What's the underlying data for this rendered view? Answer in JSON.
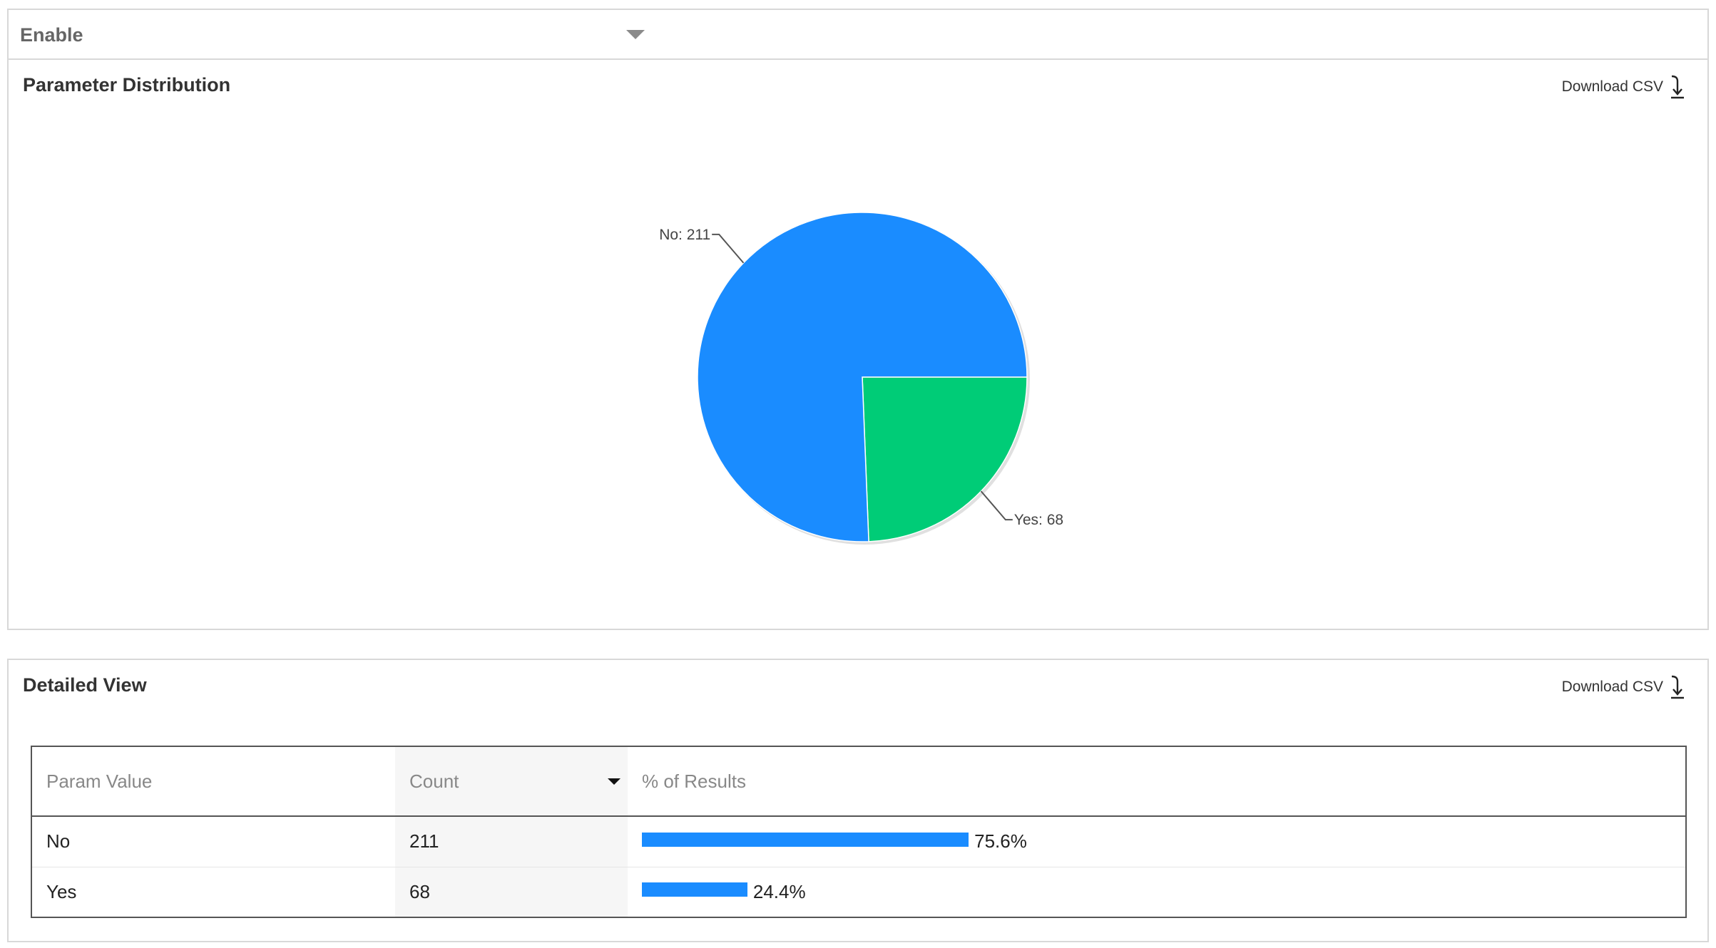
{
  "selector": {
    "value": "Enable"
  },
  "distribution_panel": {
    "title": "Parameter Distribution",
    "download_label": "Download CSV"
  },
  "detail_panel": {
    "title": "Detailed View",
    "download_label": "Download CSV",
    "columns": [
      "Param Value",
      "Count",
      "% of Results"
    ],
    "rows": [
      {
        "value": "No",
        "count": "211",
        "percent_label": "75.6%",
        "percent": 75.6
      },
      {
        "value": "Yes",
        "count": "68",
        "percent_label": "24.4%",
        "percent": 24.4
      }
    ]
  },
  "chart_data": {
    "type": "pie",
    "title": "",
    "slices": [
      {
        "label": "No",
        "value": 211,
        "color": "#1a8cff",
        "display": "No: 211"
      },
      {
        "label": "Yes",
        "value": 68,
        "color": "#00cc77",
        "display": "Yes: 68"
      }
    ]
  },
  "colors": {
    "accent_blue": "#1a8cff",
    "accent_green": "#00cc77",
    "border": "#d8d8d8"
  },
  "icons": {
    "download": "download-arrow-icon",
    "dropdown": "caret-down-icon",
    "sort": "sort-desc-icon"
  }
}
